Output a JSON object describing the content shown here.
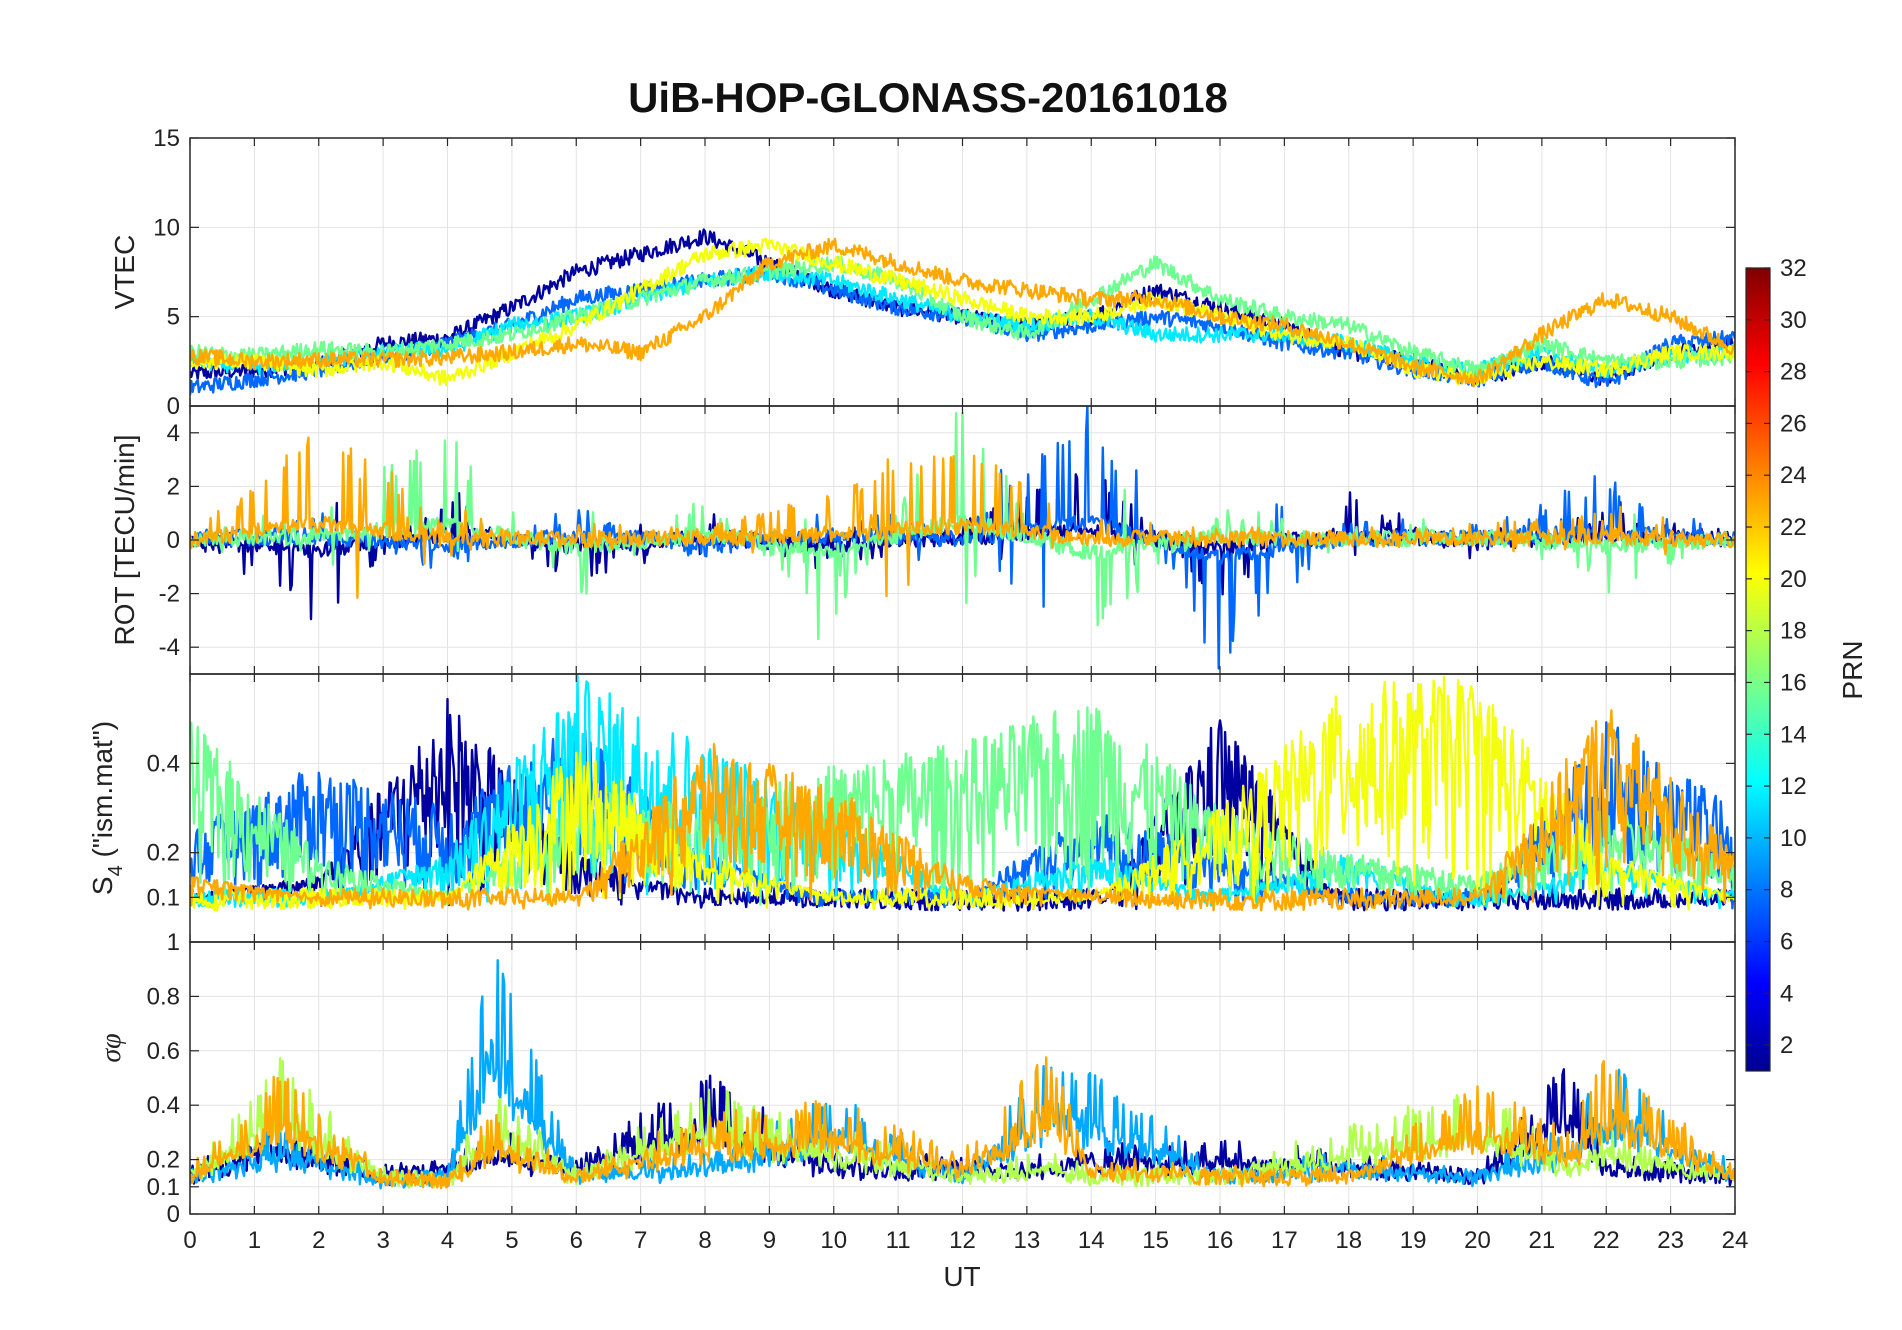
{
  "figure": {
    "title": "UiB-HOP-GLONASS-20161018",
    "xlabel": "UT",
    "x_ticks": [
      "0",
      "1",
      "2",
      "3",
      "4",
      "5",
      "6",
      "7",
      "8",
      "9",
      "10",
      "11",
      "12",
      "13",
      "14",
      "15",
      "16",
      "17",
      "18",
      "19",
      "20",
      "21",
      "22",
      "23",
      "24"
    ]
  },
  "colorbar": {
    "label": "PRN",
    "ticks": [
      "2",
      "4",
      "6",
      "8",
      "10",
      "12",
      "14",
      "16",
      "18",
      "20",
      "22",
      "24",
      "26",
      "28",
      "30",
      "32"
    ],
    "range": [
      1,
      32
    ],
    "colormap": "jet"
  },
  "chart_data": [
    {
      "type": "line",
      "panel": "vtec",
      "ylabel": "VTEC",
      "xlim": [
        0,
        24
      ],
      "ylim": [
        0,
        15
      ],
      "yticks": [
        "0",
        "5",
        "10",
        "15"
      ],
      "description_series": [
        {
          "prn": 2,
          "x": [
            0,
            1,
            2,
            3,
            4,
            5,
            6,
            7,
            8,
            9,
            10,
            11,
            12,
            13,
            14,
            15,
            16,
            17,
            18,
            19,
            20,
            21,
            22,
            23,
            24
          ],
          "y": [
            1.8,
            2,
            2.3,
            3.5,
            3.8,
            5.5,
            7.5,
            8.5,
            9.5,
            8,
            6.5,
            5.5,
            5,
            4.5,
            5,
            6.5,
            5.5,
            4.5,
            3,
            2.5,
            1.5,
            2.5,
            1.5,
            3,
            3.5
          ]
        },
        {
          "prn": 8,
          "x": [
            0,
            1,
            2,
            3,
            4,
            5,
            6,
            7,
            8,
            9,
            10,
            11,
            12,
            13,
            14,
            15,
            16,
            17,
            18,
            19,
            20,
            21,
            22,
            23,
            24
          ],
          "y": [
            1,
            1.5,
            2,
            2.8,
            3.5,
            4.5,
            6,
            6.5,
            7,
            7.5,
            6.5,
            5.5,
            5,
            4,
            4.5,
            5,
            4.5,
            3.5,
            3,
            2,
            1.5,
            2.5,
            1.2,
            3.5,
            3.8
          ]
        },
        {
          "prn": 12,
          "x": [
            0,
            1,
            2,
            3,
            4,
            5,
            6,
            7,
            8,
            9,
            10,
            11,
            12,
            13,
            14,
            15,
            16,
            17,
            18,
            19,
            20,
            21,
            22,
            23,
            24
          ],
          "y": [
            2.5,
            2.2,
            2.5,
            3,
            3.2,
            4.5,
            5,
            6,
            7,
            7.5,
            7,
            6,
            5,
            4.5,
            5,
            4,
            4,
            4,
            3.5,
            2.5,
            2,
            3,
            2,
            2.8,
            3
          ]
        },
        {
          "prn": 16,
          "x": [
            0,
            1,
            2,
            3,
            4,
            5,
            6,
            7,
            8,
            9,
            10,
            11,
            12,
            13,
            14,
            15,
            16,
            17,
            18,
            19,
            20,
            21,
            22,
            23,
            24
          ],
          "y": [
            3,
            2.8,
            3.2,
            3,
            3.5,
            4,
            5,
            6,
            7,
            7.5,
            8,
            7,
            5,
            4,
            6,
            8,
            6,
            5,
            4.5,
            3,
            2,
            3.5,
            2.5,
            2.5,
            2.8
          ]
        },
        {
          "prn": 20,
          "x": [
            0,
            1,
            2,
            3,
            4,
            5,
            6,
            7,
            8,
            9,
            10,
            11,
            12,
            13,
            14,
            15,
            16,
            17,
            18,
            19,
            20,
            21,
            22,
            23,
            24
          ],
          "y": [
            2.5,
            2.5,
            2,
            2.5,
            1.5,
            3,
            4.5,
            6.5,
            8.5,
            9,
            8,
            7,
            6,
            5,
            5,
            6,
            5,
            4,
            3.5,
            2,
            1.5,
            2.5,
            2,
            3,
            3
          ]
        },
        {
          "prn": 23,
          "x": [
            0,
            1,
            2,
            3,
            4,
            5,
            6,
            7,
            8,
            9,
            10,
            11,
            12,
            13,
            14,
            15,
            16,
            17,
            18,
            19,
            20,
            21,
            22,
            23,
            24
          ],
          "y": [
            2.8,
            2.5,
            2.6,
            2.6,
            2.7,
            3,
            3.5,
            3,
            5,
            8,
            9,
            8,
            7,
            6.5,
            6,
            6,
            5,
            4.5,
            3.5,
            2.2,
            1.5,
            4,
            6,
            5,
            3.2
          ]
        }
      ]
    },
    {
      "type": "line",
      "panel": "rot",
      "ylabel": "ROT [TECU/min]",
      "xlim": [
        0,
        24
      ],
      "ylim": [
        -5,
        5
      ],
      "yticks": [
        "-4",
        "-2",
        "0",
        "2",
        "4"
      ],
      "description_series": [
        {
          "prn": 2,
          "x": [
            0,
            2,
            4,
            6,
            8,
            10,
            12,
            14,
            16,
            18,
            20,
            22,
            24
          ],
          "y": [
            0,
            -2.5,
            1.5,
            -1.5,
            0.5,
            -1,
            0.5,
            2.5,
            -2,
            1.5,
            -0.5,
            1,
            0
          ]
        },
        {
          "prn": 8,
          "x": [
            0,
            2,
            4,
            6,
            8,
            10,
            12,
            14,
            16,
            18,
            20,
            22,
            24
          ],
          "y": [
            0,
            0.8,
            -1,
            1,
            -0.5,
            1,
            0.3,
            4.5,
            -4.3,
            0.5,
            0.3,
            2,
            0
          ]
        },
        {
          "prn": 16,
          "x": [
            0,
            2,
            4,
            6,
            8,
            10,
            12,
            14,
            16,
            18,
            20,
            22,
            24
          ],
          "y": [
            0,
            1,
            3.8,
            -2,
            1.5,
            -2.8,
            5,
            -3.2,
            1,
            0.3,
            0.5,
            -1.5,
            0
          ]
        },
        {
          "prn": 23,
          "x": [
            0,
            2,
            4,
            6,
            8,
            10,
            12,
            14,
            16,
            18,
            20,
            22,
            24
          ],
          "y": [
            0,
            4,
            0.5,
            0.3,
            0.3,
            1.5,
            3.5,
            0.5,
            0.2,
            0.2,
            0.3,
            1,
            0
          ]
        }
      ]
    },
    {
      "type": "line",
      "panel": "s4",
      "ylabel": "S4 (\"ism.mat\")",
      "ylabel_main": "S",
      "ylabel_sub": "4",
      "ylabel_rest": " (\"ism.mat\")",
      "xlim": [
        0,
        24
      ],
      "ylim": [
        0,
        0.6
      ],
      "yticks": [
        "0.1",
        "0.2",
        "0.4"
      ],
      "description_series": [
        {
          "prn": 2,
          "x": [
            0,
            2,
            4,
            6,
            8,
            10,
            12,
            14,
            16,
            18,
            20,
            22,
            24
          ],
          "y": [
            0.1,
            0.15,
            0.55,
            0.2,
            0.1,
            0.08,
            0.07,
            0.05,
            0.52,
            0.06,
            0.05,
            0.07,
            0.1
          ]
        },
        {
          "prn": 8,
          "x": [
            0,
            2,
            4,
            6,
            8,
            10,
            12,
            14,
            16,
            18,
            20,
            22,
            24
          ],
          "y": [
            0.25,
            0.4,
            0.3,
            0.5,
            0.2,
            0.1,
            0.1,
            0.3,
            0.2,
            0.1,
            0.08,
            0.5,
            0.3
          ]
        },
        {
          "prn": 12,
          "x": [
            0,
            2,
            4,
            6,
            8,
            10,
            12,
            14,
            16,
            18,
            20,
            22,
            24
          ],
          "y": [
            0.08,
            0.1,
            0.2,
            0.6,
            0.45,
            0.3,
            0.1,
            0.2,
            0.1,
            0.2,
            0.08,
            0.2,
            0.1
          ]
        },
        {
          "prn": 16,
          "x": [
            0,
            2,
            4,
            6,
            8,
            10,
            12,
            14,
            16,
            18,
            20,
            22,
            24
          ],
          "y": [
            0.5,
            0.2,
            0.1,
            0.35,
            0.3,
            0.4,
            0.45,
            0.55,
            0.3,
            0.2,
            0.15,
            0.3,
            0.2
          ]
        },
        {
          "prn": 20,
          "x": [
            0,
            2,
            4,
            6,
            8,
            10,
            12,
            14,
            16,
            18,
            20,
            22,
            24
          ],
          "y": [
            0.07,
            0.08,
            0.1,
            0.45,
            0.2,
            0.1,
            0.08,
            0.1,
            0.3,
            0.58,
            0.6,
            0.2,
            0.1
          ]
        },
        {
          "prn": 23,
          "x": [
            0,
            2,
            4,
            6,
            8,
            10,
            12,
            14,
            16,
            18,
            20,
            22,
            24
          ],
          "y": [
            0.15,
            0.1,
            0.08,
            0.1,
            0.45,
            0.35,
            0.15,
            0.1,
            0.07,
            0.07,
            0.1,
            0.55,
            0.2
          ]
        }
      ]
    },
    {
      "type": "line",
      "panel": "sigma_phi",
      "ylabel": "σφ",
      "xlim": [
        0,
        24
      ],
      "ylim": [
        0,
        1
      ],
      "yticks": [
        "0",
        "0.1",
        "0.2",
        "0.4",
        "0.6",
        "0.8",
        "1"
      ],
      "description_series": [
        {
          "prn": 2,
          "x": [
            0,
            1.4,
            3,
            4,
            4.7,
            6,
            8,
            10,
            12,
            13.3,
            14,
            16,
            18,
            20,
            21.4,
            22,
            24
          ],
          "y": [
            0.15,
            0.35,
            0.15,
            0.2,
            0.3,
            0.2,
            0.5,
            0.2,
            0.2,
            0.2,
            0.25,
            0.25,
            0.2,
            0.15,
            0.55,
            0.2,
            0.15
          ]
        },
        {
          "prn": 10,
          "x": [
            0,
            1.4,
            3,
            4,
            4.7,
            6,
            8,
            10,
            12,
            13.3,
            14,
            16,
            18,
            20,
            21.4,
            22,
            24
          ],
          "y": [
            0.15,
            0.3,
            0.12,
            0.15,
            0.98,
            0.15,
            0.2,
            0.42,
            0.15,
            0.55,
            0.5,
            0.15,
            0.2,
            0.15,
            0.3,
            0.55,
            0.15
          ]
        },
        {
          "prn": 18,
          "x": [
            0,
            1.4,
            3,
            4,
            4.7,
            6,
            8,
            10,
            12,
            13.3,
            14,
            16,
            18,
            20,
            21.4,
            22,
            24
          ],
          "y": [
            0.15,
            0.55,
            0.15,
            0.12,
            0.45,
            0.15,
            0.45,
            0.3,
            0.15,
            0.2,
            0.15,
            0.15,
            0.3,
            0.45,
            0.2,
            0.3,
            0.15
          ]
        },
        {
          "prn": 23,
          "x": [
            0,
            1.4,
            3,
            4,
            4.7,
            6,
            8,
            10,
            12,
            13.3,
            14,
            16,
            18,
            20,
            21.4,
            22,
            24
          ],
          "y": [
            0.15,
            0.5,
            0.15,
            0.12,
            0.35,
            0.15,
            0.35,
            0.4,
            0.2,
            0.58,
            0.2,
            0.15,
            0.15,
            0.45,
            0.3,
            0.55,
            0.15
          ]
        }
      ]
    }
  ]
}
